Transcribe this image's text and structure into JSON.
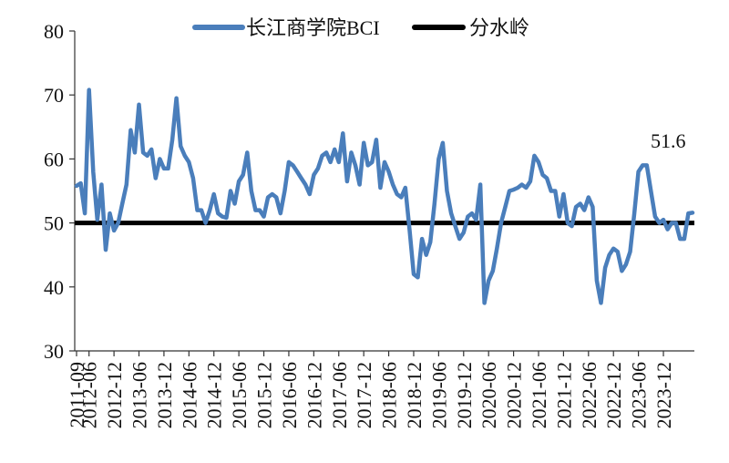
{
  "chart_data": {
    "type": "line",
    "title": "",
    "xlabel": "",
    "ylabel": "",
    "ylim": [
      30,
      80
    ],
    "y_ticks": [
      "30",
      "40",
      "50",
      "60",
      "70",
      "80"
    ],
    "x_tick_labels": [
      "2011-09",
      "2012-06",
      "2012-12",
      "2013-06",
      "2013-12",
      "2014-06",
      "2014-12",
      "2015-06",
      "2015-12",
      "2016-06",
      "2016-12",
      "2017-06",
      "2017-12",
      "2018-06",
      "2018-12",
      "2019-06",
      "2019-12",
      "2020-06",
      "2020-12",
      "2021-06",
      "2021-12",
      "2022-06",
      "2022-12",
      "2023-06",
      "2023-12"
    ],
    "legend": {
      "position": "top",
      "entries": [
        "长江商学院BCI",
        "分水岭"
      ]
    },
    "annotation": {
      "text": "51.6"
    },
    "series": [
      {
        "name": "长江商学院BCI",
        "color": "#4a7ebb",
        "start": "2011-09",
        "values": [
          55.8,
          56.2,
          51.5,
          70.8,
          58.0,
          50.5,
          56.0,
          45.8,
          51.5,
          48.8,
          50.0,
          53.0,
          56.0,
          64.5,
          61.0,
          68.5,
          61.0,
          60.5,
          61.5,
          57.0,
          60.0,
          58.5,
          58.5,
          63.0,
          69.5,
          62.0,
          60.5,
          59.5,
          57.0,
          52.0,
          52.0,
          50.0,
          52.0,
          54.5,
          51.5,
          51.0,
          50.8,
          55.0,
          53.0,
          56.5,
          57.5,
          61.0,
          55.0,
          52.0,
          52.0,
          51.0,
          54.0,
          54.5,
          54.0,
          51.5,
          55.0,
          59.5,
          59.0,
          58.0,
          57.0,
          56.0,
          54.5,
          57.5,
          58.5,
          60.5,
          61.0,
          59.5,
          61.5,
          59.5,
          64.0,
          56.5,
          61.0,
          59.0,
          56.0,
          62.5,
          59.0,
          59.5,
          63.0,
          55.5,
          59.5,
          58.0,
          56.0,
          54.5,
          54.0,
          55.5,
          49.0,
          42.0,
          41.5,
          47.5,
          45.0,
          47.0,
          53.0,
          60.0,
          62.5,
          55.0,
          51.5,
          49.5,
          47.5,
          48.5,
          51.0,
          51.5,
          50.5,
          56.0,
          37.5,
          41.0,
          42.5,
          46.0,
          50.0,
          52.5,
          55.0,
          55.2,
          55.5,
          56.0,
          55.5,
          56.5,
          60.5,
          59.5,
          57.5,
          57.0,
          55.0,
          55.0,
          51.0,
          54.5,
          50.0,
          49.5,
          52.5,
          53.0,
          52.0,
          54.0,
          52.5,
          41.0,
          37.5,
          43.0,
          45.0,
          46.0,
          45.5,
          42.5,
          43.5,
          45.5,
          51.5,
          58.0,
          59.0,
          59.0,
          55.0,
          51.0,
          50.0,
          50.5,
          49.0,
          50.0,
          50.0,
          47.5,
          47.5,
          51.5,
          51.6
        ]
      },
      {
        "name": "分水岭",
        "color": "#000000",
        "values": [
          50,
          50
        ]
      }
    ]
  }
}
